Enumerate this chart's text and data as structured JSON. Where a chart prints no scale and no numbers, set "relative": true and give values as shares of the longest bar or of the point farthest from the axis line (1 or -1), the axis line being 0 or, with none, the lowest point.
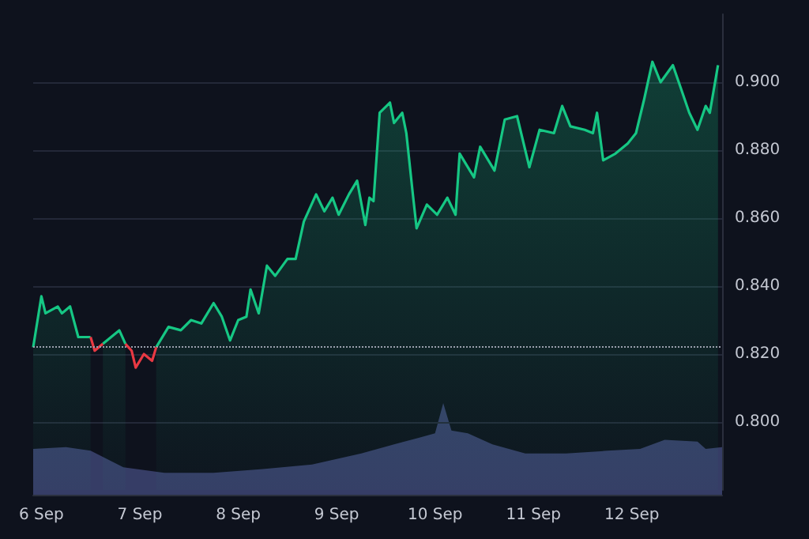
{
  "chart_data": [
    {
      "type": "area",
      "xlim": [
        "--09-05T22:00",
        "--09-12T22:00"
      ],
      "ylim": [
        0.78,
        0.92
      ],
      "yticks": [
        {
          "value": 0.8,
          "label": "0.800"
        },
        {
          "value": 0.82,
          "label": "0.820"
        },
        {
          "value": 0.84,
          "label": "0.840"
        },
        {
          "value": 0.86,
          "label": "0.860"
        },
        {
          "value": 0.88,
          "label": "0.880"
        },
        {
          "value": 0.9,
          "label": "0.900"
        }
      ],
      "tick_labels": "y",
      "grid": "y",
      "marker": "none",
      "ref_lines": [
        {
          "axis": "y",
          "value": 0.822,
          "color": "#9aa0ad",
          "line_style": "dotted"
        }
      ],
      "x": [
        "--09-05T22:00",
        "--09-06T00:00",
        "--09-06T01:00",
        "--09-06T04:00",
        "--09-06T05:00",
        "--09-06T07:00",
        "--09-06T09:00",
        "--09-06T12:00",
        "--09-06T13:00",
        "--09-06T15:00",
        "--09-06T17:00",
        "--09-06T19:00",
        "--09-06T20:30",
        "--09-06T22:00",
        "--09-06T23:00",
        "--09-07T01:00",
        "--09-07T03:00",
        "--09-07T04:00",
        "--09-07T07:00",
        "--09-07T10:00",
        "--09-07T12:30",
        "--09-07T15:00",
        "--09-07T18:00",
        "--09-07T20:00",
        "--09-07T22:00",
        "--09-08T00:00",
        "--09-08T02:00",
        "--09-08T03:00",
        "--09-08T05:00",
        "--09-08T07:00",
        "--09-08T09:00",
        "--09-08T12:00",
        "--09-08T14:00",
        "--09-08T16:00",
        "--09-08T19:00",
        "--09-08T21:00",
        "--09-08T23:00",
        "--09-09T00:30",
        "--09-09T03:00",
        "--09-09T05:00",
        "--09-09T07:00",
        "--09-09T08:00",
        "--09-09T09:00",
        "--09-09T10:30",
        "--09-09T13:00",
        "--09-09T14:00",
        "--09-09T16:00",
        "--09-09T17:00",
        "--09-09T18:30",
        "--09-09T19:30",
        "--09-09T22:00",
        "--09-10T00:30",
        "--09-10T03:00",
        "--09-10T05:00",
        "--09-10T06:00",
        "--09-10T09:30",
        "--09-10T11:00",
        "--09-10T14:30",
        "--09-10T17:00",
        "--09-10T20:00",
        "--09-10T21:00",
        "--09-10T23:00",
        "--09-11T01:30",
        "--09-11T05:00",
        "--09-11T07:00",
        "--09-11T09:00",
        "--09-11T12:30",
        "--09-11T14:30",
        "--09-11T15:30",
        "--09-11T17:00",
        "--09-11T20:00",
        "--09-11T23:00",
        "--09-12T01:00",
        "--09-12T03:00",
        "--09-12T05:00",
        "--09-12T07:00",
        "--09-12T10:00",
        "--09-12T12:00",
        "--09-12T14:00",
        "--09-12T16:00",
        "--09-12T18:00",
        "--09-12T19:00",
        "--09-12T21:00"
      ],
      "series": [
        {
          "color": "#16c784",
          "values": [
            0.822,
            0.837,
            0.832,
            0.834,
            0.832,
            0.834,
            0.825,
            0.825,
            null,
            0.823,
            0.825,
            0.827,
            0.823,
            null,
            null,
            null,
            null,
            0.822,
            0.828,
            0.827,
            0.83,
            0.829,
            0.835,
            0.831,
            0.824,
            0.83,
            0.831,
            0.839,
            0.832,
            0.846,
            0.843,
            0.848,
            0.848,
            0.859,
            0.867,
            0.862,
            0.866,
            0.861,
            0.867,
            0.871,
            0.858,
            0.866,
            0.865,
            0.891,
            0.894,
            0.888,
            0.891,
            0.885,
            0.868,
            0.857,
            0.864,
            0.861,
            0.866,
            0.861,
            0.879,
            0.872,
            0.881,
            0.874,
            0.889,
            0.89,
            0.885,
            0.875,
            0.886,
            0.885,
            0.893,
            0.887,
            0.886,
            0.885,
            0.891,
            0.877,
            0.879,
            0.882,
            0.885,
            0.895,
            0.906,
            0.9,
            0.905,
            0.898,
            0.891,
            0.886,
            0.893,
            0.891,
            0.905
          ]
        },
        {
          "type": "line",
          "color": "#ea3943",
          "values": [
            null,
            null,
            null,
            null,
            null,
            null,
            null,
            0.825,
            0.821,
            0.823,
            null,
            null,
            null,
            null,
            null,
            null,
            null,
            null,
            null,
            null,
            null,
            null,
            null,
            null,
            null,
            null,
            null,
            null,
            null,
            null,
            null,
            null,
            null,
            null,
            null,
            null,
            null,
            null,
            null,
            null,
            null,
            null,
            null,
            null,
            null,
            null,
            null,
            null,
            null,
            null,
            null,
            null,
            null,
            null,
            null,
            null,
            null,
            null,
            null,
            null,
            null,
            null,
            null,
            null,
            null,
            null,
            null,
            null,
            null,
            null,
            null,
            null,
            null,
            null,
            null,
            null,
            null,
            null,
            null,
            null,
            null,
            null,
            null
          ]
        },
        {
          "type": "line",
          "color": "#ea3943",
          "values": [
            null,
            null,
            null,
            null,
            null,
            null,
            null,
            null,
            null,
            null,
            null,
            null,
            0.823,
            0.821,
            0.816,
            0.82,
            0.818,
            0.822,
            null,
            null,
            null,
            null,
            null,
            null,
            null,
            null,
            null,
            null,
            null,
            null,
            null,
            null,
            null,
            null,
            null,
            null,
            null,
            null,
            null,
            null,
            null,
            null,
            null,
            null,
            null,
            null,
            null,
            null,
            null,
            null,
            null,
            null,
            null,
            null,
            null,
            null,
            null,
            null,
            null,
            null,
            null,
            null,
            null,
            null,
            null,
            null,
            null,
            null,
            null,
            null,
            null,
            null,
            null,
            null,
            null,
            null,
            null,
            null,
            null,
            null,
            null,
            null,
            null
          ]
        }
      ]
    },
    {
      "type": "area",
      "relative": true,
      "tick_labels": "x",
      "grid": false,
      "marker": "none",
      "xlim": [
        "--09-05T22:00",
        "--09-12T22:00"
      ],
      "xticks": [
        {
          "value": "--09-06",
          "label": "6 Sep"
        },
        {
          "value": "--09-07",
          "label": "7 Sep"
        },
        {
          "value": "--09-08",
          "label": "8 Sep"
        },
        {
          "value": "--09-09",
          "label": "9 Sep"
        },
        {
          "value": "--09-10",
          "label": "10 Sep"
        },
        {
          "value": "--09-11",
          "label": "11 Sep"
        },
        {
          "value": "--09-12",
          "label": "12 Sep"
        }
      ],
      "x": [
        "--09-05T22:00",
        "--09-06T06:00",
        "--09-06T12:00",
        "--09-06T20:00",
        "--09-07T06:00",
        "--09-07T18:00",
        "--09-08T06:00",
        "--09-08T18:00",
        "--09-09T06:00",
        "--09-09T14:00",
        "--09-09T20:00",
        "--09-10T00:00",
        "--09-10T02:00",
        "--09-10T04:00",
        "--09-10T08:00",
        "--09-10T14:00",
        "--09-10T22:00",
        "--09-11T08:00",
        "--09-11T18:00",
        "--09-12T02:00",
        "--09-12T08:00",
        "--09-12T16:00",
        "--09-12T18:00",
        "--09-12T22:00"
      ],
      "series": [
        {
          "color": "#363d66",
          "values": [
            0.5,
            0.52,
            0.48,
            0.3,
            0.24,
            0.24,
            0.28,
            0.33,
            0.45,
            0.55,
            0.62,
            0.67,
            1.0,
            0.7,
            0.67,
            0.55,
            0.45,
            0.45,
            0.48,
            0.5,
            0.6,
            0.58,
            0.5,
            0.52
          ]
        }
      ]
    }
  ]
}
